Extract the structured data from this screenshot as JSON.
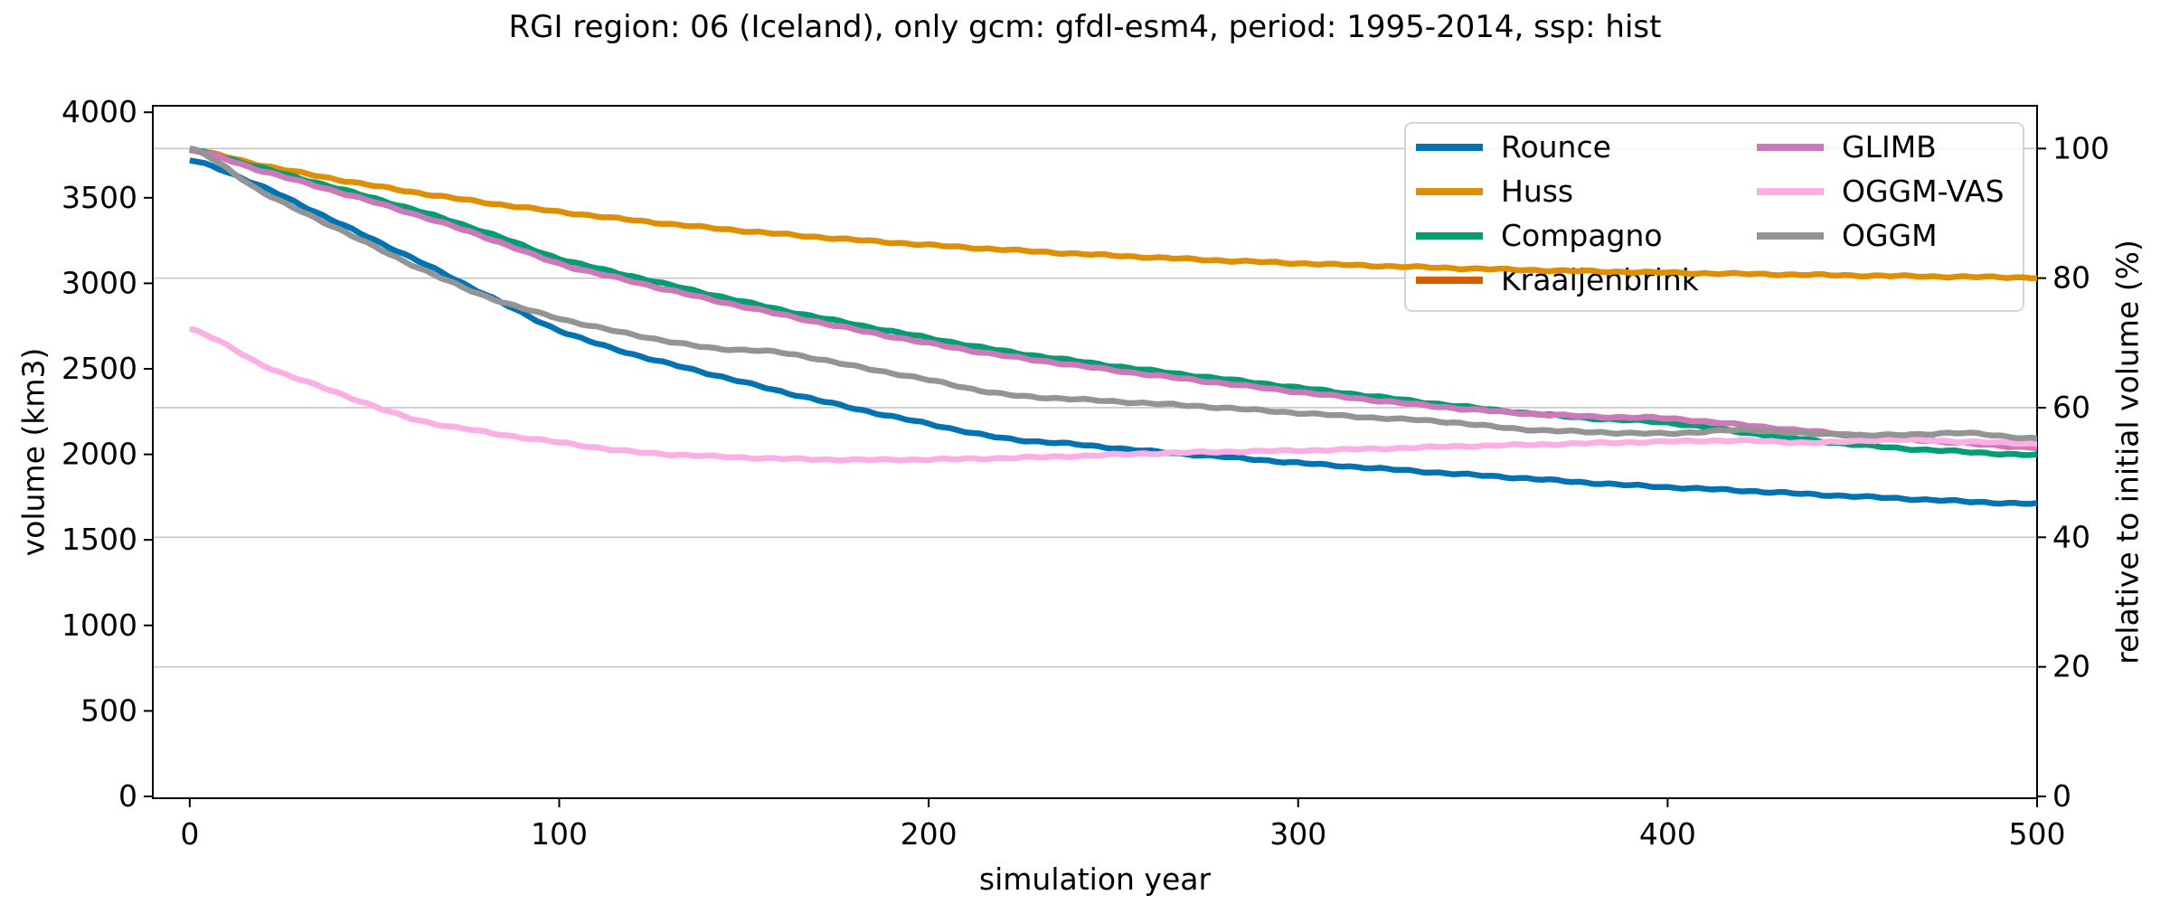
{
  "figure": {
    "background_color": "#ffffff",
    "text_color": "#000000",
    "grid_color": "#c6c6c6",
    "spine_color": "#000000",
    "legend_background": "#ffffff",
    "legend_border_color": "#d4d4d4"
  },
  "chart_data": {
    "type": "line",
    "title": "RGI region: 06 (Iceland), only gcm: gfdl-esm4, period: 1995-2014, ssp: hist",
    "xlabel": "simulation year",
    "ylabel_left": "volume (km3)",
    "ylabel_right": "relative to initial volume (%)",
    "xlim": [
      -10,
      500
    ],
    "ylim_left": [
      0,
      4040
    ],
    "x_ticks": [
      0,
      100,
      200,
      300,
      400,
      500
    ],
    "y_ticks_left": [
      0,
      500,
      1000,
      1500,
      2000,
      2500,
      3000,
      3500,
      4000
    ],
    "y_ticks_right": [
      0,
      20,
      40,
      60,
      80,
      100
    ],
    "initial_volume_km3": 3788,
    "grid": "horizontal gridlines at right-axis percentage ticks",
    "legend_position": "upper right, 2 columns",
    "legend_columns": 2,
    "sample_years": [
      0,
      20,
      40,
      60,
      80,
      100,
      120,
      140,
      160,
      180,
      200,
      220,
      240,
      260,
      280,
      300,
      320,
      340,
      360,
      380,
      400,
      420,
      440,
      460,
      480,
      500
    ],
    "series": [
      {
        "name": "Rounce",
        "color": "#0173b2",
        "values": [
          3720,
          3560,
          3355,
          3150,
          2935,
          2725,
          2585,
          2475,
          2368,
          2268,
          2178,
          2095,
          2058,
          2018,
          1985,
          1950,
          1920,
          1890,
          1862,
          1832,
          1808,
          1788,
          1765,
          1745,
          1725,
          1710
        ]
      },
      {
        "name": "Huss",
        "color": "#de8f05",
        "values": [
          3780,
          3688,
          3607,
          3535,
          3472,
          3418,
          3369,
          3326,
          3288,
          3254,
          3224,
          3197,
          3173,
          3152,
          3133,
          3117,
          3103,
          3090,
          3079,
          3070,
          3062,
          3055,
          3049,
          3043,
          3038,
          3034
        ]
      },
      {
        "name": "Compagno",
        "color": "#029e73",
        "values": [
          3780,
          3670,
          3555,
          3435,
          3300,
          3145,
          3040,
          2940,
          2845,
          2760,
          2680,
          2605,
          2545,
          2490,
          2440,
          2390,
          2340,
          2290,
          2245,
          2210,
          2185,
          2130,
          2080,
          2040,
          2015,
          1995
        ]
      },
      {
        "name": "Kraaijenbrink",
        "color": "#d55e00",
        "values": [
          3780,
          3655,
          3535,
          3410,
          3270,
          3115,
          3010,
          2910,
          2818,
          2730,
          2650,
          2578,
          2520,
          2465,
          2415,
          2365,
          2318,
          2275,
          2242,
          2220,
          2210,
          2172,
          2132,
          2098,
          2066,
          2040
        ]
      },
      {
        "name": "GLIMB",
        "color": "#cc78bc",
        "values": [
          3780,
          3655,
          3535,
          3410,
          3270,
          3115,
          3010,
          2910,
          2818,
          2730,
          2650,
          2578,
          2520,
          2465,
          2415,
          2365,
          2318,
          2275,
          2242,
          2220,
          2210,
          2172,
          2132,
          2098,
          2066,
          2040
        ]
      },
      {
        "name": "OGGM-VAS",
        "color": "#fbafe4",
        "values": [
          2735,
          2520,
          2360,
          2210,
          2130,
          2070,
          2015,
          1990,
          1975,
          1968,
          1970,
          1978,
          1990,
          2005,
          2015,
          2022,
          2032,
          2045,
          2055,
          2065,
          2075,
          2080,
          2068,
          2085,
          2075,
          2062
        ]
      },
      {
        "name": "OGGM",
        "color": "#949494",
        "values": [
          3790,
          3530,
          3320,
          3110,
          2925,
          2795,
          2700,
          2625,
          2595,
          2515,
          2435,
          2352,
          2322,
          2298,
          2272,
          2242,
          2215,
          2190,
          2148,
          2130,
          2122,
          2142,
          2120,
          2112,
          2124,
          2092
        ]
      }
    ]
  },
  "style": {
    "line_width": 6.5,
    "noise_amplitude_km3": 6
  }
}
